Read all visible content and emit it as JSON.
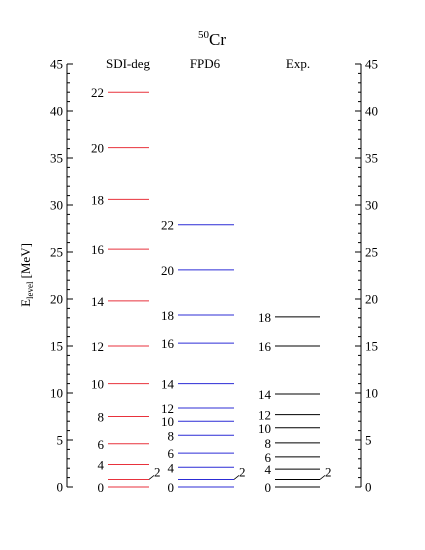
{
  "chart_data": {
    "type": "level_scheme",
    "title": "Cr",
    "title_superscript": "50",
    "ylabel": "E",
    "ylabel_subscript": "level",
    "ylabel_unit": "[MeV]",
    "ylim": [
      0,
      45
    ],
    "yticks": [
      0,
      5,
      10,
      15,
      20,
      25,
      30,
      35,
      40,
      45
    ],
    "series": [
      {
        "name": "SDI-deg",
        "color": "#e8323c",
        "levels": [
          {
            "spin": "0",
            "energy": 0
          },
          {
            "spin": "2",
            "energy": 0.8
          },
          {
            "spin": "4",
            "energy": 2.4
          },
          {
            "spin": "6",
            "energy": 4.6
          },
          {
            "spin": "8",
            "energy": 7.5
          },
          {
            "spin": "10",
            "energy": 11.0
          },
          {
            "spin": "12",
            "energy": 15.0
          },
          {
            "spin": "14",
            "energy": 19.8
          },
          {
            "spin": "16",
            "energy": 25.3
          },
          {
            "spin": "18",
            "energy": 30.6
          },
          {
            "spin": "20",
            "energy": 36.1
          },
          {
            "spin": "22",
            "energy": 42.0
          }
        ]
      },
      {
        "name": "FPD6",
        "color": "#2c2cd6",
        "levels": [
          {
            "spin": "0",
            "energy": 0
          },
          {
            "spin": "2",
            "energy": 0.8
          },
          {
            "spin": "4",
            "energy": 2.1
          },
          {
            "spin": "6",
            "energy": 3.6
          },
          {
            "spin": "8",
            "energy": 5.5
          },
          {
            "spin": "10",
            "energy": 7.0
          },
          {
            "spin": "12",
            "energy": 8.4
          },
          {
            "spin": "14",
            "energy": 11.0
          },
          {
            "spin": "16",
            "energy": 15.3
          },
          {
            "spin": "18",
            "energy": 18.3
          },
          {
            "spin": "20",
            "energy": 23.1
          },
          {
            "spin": "22",
            "energy": 27.9
          }
        ]
      },
      {
        "name": "Exp.",
        "color": "#000000",
        "levels": [
          {
            "spin": "0",
            "energy": 0
          },
          {
            "spin": "2",
            "energy": 0.8
          },
          {
            "spin": "4",
            "energy": 1.9
          },
          {
            "spin": "6",
            "energy": 3.2
          },
          {
            "spin": "8",
            "energy": 4.7
          },
          {
            "spin": "10",
            "energy": 6.3
          },
          {
            "spin": "12",
            "energy": 7.7
          },
          {
            "spin": "14",
            "energy": 9.9
          },
          {
            "spin": "16",
            "energy": 15.0
          },
          {
            "spin": "18",
            "energy": 18.1
          }
        ]
      }
    ]
  }
}
